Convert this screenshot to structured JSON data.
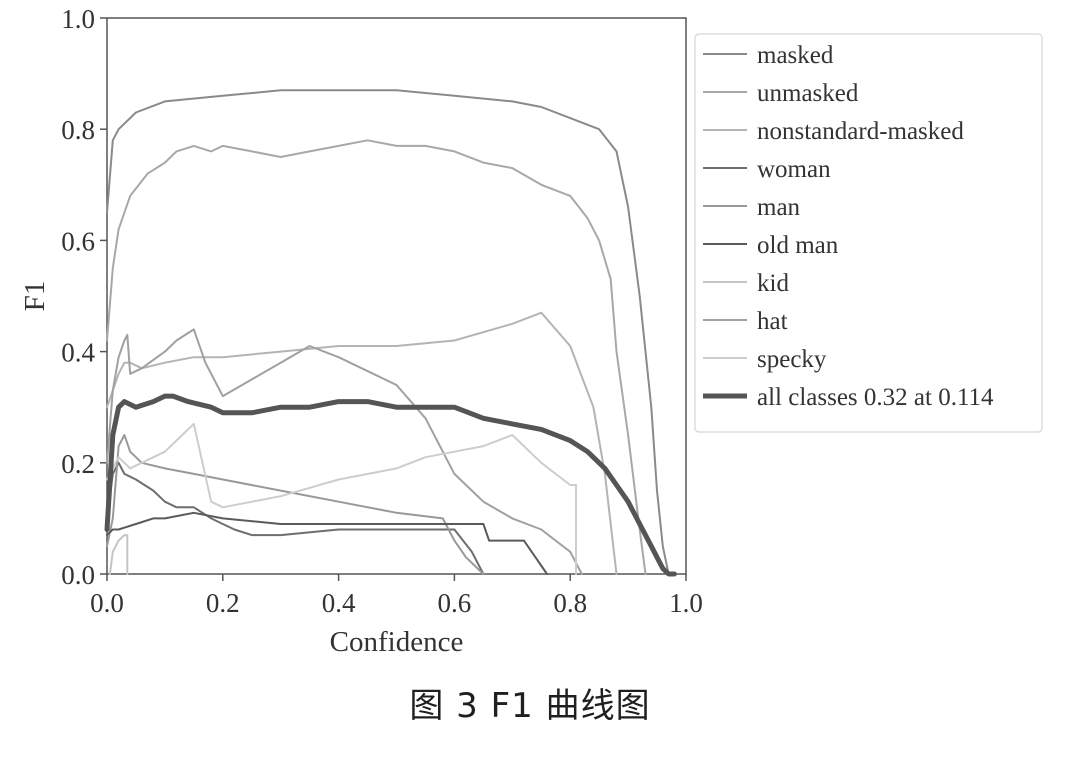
{
  "caption": "图 3   F1 曲线图",
  "chart_data": {
    "type": "line",
    "title": "",
    "xlabel": "Confidence",
    "ylabel": "F1",
    "xlim": [
      0.0,
      1.0
    ],
    "ylim": [
      0.0,
      1.0
    ],
    "xticks": [
      0.0,
      0.2,
      0.4,
      0.6,
      0.8,
      1.0
    ],
    "yticks": [
      0.0,
      0.2,
      0.4,
      0.6,
      0.8,
      1.0
    ],
    "xtick_labels": [
      "0.0",
      "0.2",
      "0.4",
      "0.6",
      "0.8",
      "1.0"
    ],
    "ytick_labels": [
      "0.0",
      "0.2",
      "0.4",
      "0.6",
      "0.8",
      "1.0"
    ],
    "grid": false,
    "legend_position": "outside-right",
    "series": [
      {
        "name": "masked",
        "color": "#8a8a8a",
        "width": 2,
        "x": [
          0.0,
          0.01,
          0.02,
          0.05,
          0.1,
          0.2,
          0.3,
          0.4,
          0.5,
          0.6,
          0.7,
          0.75,
          0.8,
          0.85,
          0.88,
          0.9,
          0.92,
          0.94,
          0.95,
          0.96,
          0.97,
          0.98
        ],
        "y": [
          0.65,
          0.78,
          0.8,
          0.83,
          0.85,
          0.86,
          0.87,
          0.87,
          0.87,
          0.86,
          0.85,
          0.84,
          0.82,
          0.8,
          0.76,
          0.66,
          0.5,
          0.3,
          0.15,
          0.05,
          0.0,
          0.0
        ]
      },
      {
        "name": "unmasked",
        "color": "#a8a8a8",
        "width": 2,
        "x": [
          0.0,
          0.01,
          0.02,
          0.04,
          0.07,
          0.1,
          0.12,
          0.15,
          0.18,
          0.2,
          0.25,
          0.3,
          0.35,
          0.4,
          0.45,
          0.5,
          0.55,
          0.6,
          0.65,
          0.7,
          0.75,
          0.8,
          0.83,
          0.85,
          0.87,
          0.88,
          0.9,
          0.92,
          0.93
        ],
        "y": [
          0.42,
          0.55,
          0.62,
          0.68,
          0.72,
          0.74,
          0.76,
          0.77,
          0.76,
          0.77,
          0.76,
          0.75,
          0.76,
          0.77,
          0.78,
          0.77,
          0.77,
          0.76,
          0.74,
          0.73,
          0.7,
          0.68,
          0.64,
          0.6,
          0.53,
          0.4,
          0.25,
          0.08,
          0.0
        ]
      },
      {
        "name": "nonstandard-masked",
        "color": "#b4b4b4",
        "width": 2,
        "x": [
          0.0,
          0.02,
          0.03,
          0.04,
          0.06,
          0.1,
          0.15,
          0.2,
          0.3,
          0.4,
          0.5,
          0.6,
          0.7,
          0.75,
          0.8,
          0.84,
          0.86,
          0.88
        ],
        "y": [
          0.3,
          0.36,
          0.38,
          0.38,
          0.37,
          0.38,
          0.39,
          0.39,
          0.4,
          0.41,
          0.41,
          0.42,
          0.45,
          0.47,
          0.41,
          0.3,
          0.18,
          0.0
        ]
      },
      {
        "name": "woman",
        "color": "#6e6e6e",
        "width": 2,
        "x": [
          0.0,
          0.01,
          0.02,
          0.03,
          0.05,
          0.08,
          0.1,
          0.12,
          0.15,
          0.18,
          0.2,
          0.22,
          0.25,
          0.3,
          0.4,
          0.5,
          0.55,
          0.6,
          0.63,
          0.65
        ],
        "y": [
          0.1,
          0.18,
          0.2,
          0.18,
          0.17,
          0.15,
          0.13,
          0.12,
          0.12,
          0.1,
          0.09,
          0.08,
          0.07,
          0.07,
          0.08,
          0.08,
          0.08,
          0.08,
          0.04,
          0.0
        ]
      },
      {
        "name": "man",
        "color": "#999999",
        "width": 2,
        "x": [
          0.0,
          0.01,
          0.02,
          0.03,
          0.04,
          0.06,
          0.1,
          0.15,
          0.2,
          0.3,
          0.4,
          0.5,
          0.58,
          0.6,
          0.62,
          0.65
        ],
        "y": [
          0.05,
          0.1,
          0.23,
          0.25,
          0.22,
          0.2,
          0.19,
          0.18,
          0.17,
          0.15,
          0.13,
          0.11,
          0.1,
          0.06,
          0.03,
          0.0
        ]
      },
      {
        "name": "old man",
        "color": "#5a5a5a",
        "width": 2,
        "x": [
          0.0,
          0.01,
          0.02,
          0.05,
          0.08,
          0.1,
          0.15,
          0.2,
          0.3,
          0.4,
          0.5,
          0.6,
          0.65,
          0.66,
          0.7,
          0.72,
          0.74,
          0.76
        ],
        "y": [
          0.07,
          0.08,
          0.08,
          0.09,
          0.1,
          0.1,
          0.11,
          0.1,
          0.09,
          0.09,
          0.09,
          0.09,
          0.09,
          0.06,
          0.06,
          0.06,
          0.03,
          0.0
        ]
      },
      {
        "name": "kid",
        "color": "#c4c4c4",
        "width": 2,
        "x": [
          0.005,
          0.01,
          0.02,
          0.03,
          0.035,
          0.035
        ],
        "y": [
          0.0,
          0.04,
          0.06,
          0.07,
          0.07,
          0.0
        ]
      },
      {
        "name": "hat",
        "color": "#a0a0a0",
        "width": 2,
        "x": [
          0.0,
          0.01,
          0.02,
          0.03,
          0.035,
          0.04,
          0.06,
          0.1,
          0.12,
          0.15,
          0.17,
          0.2,
          0.25,
          0.3,
          0.35,
          0.4,
          0.5,
          0.55,
          0.6,
          0.65,
          0.7,
          0.75,
          0.8,
          0.82
        ],
        "y": [
          0.2,
          0.33,
          0.39,
          0.42,
          0.43,
          0.36,
          0.37,
          0.4,
          0.42,
          0.44,
          0.38,
          0.32,
          0.35,
          0.38,
          0.41,
          0.39,
          0.34,
          0.28,
          0.18,
          0.13,
          0.1,
          0.08,
          0.04,
          0.0
        ]
      },
      {
        "name": "specky",
        "color": "#cdcdcd",
        "width": 2,
        "x": [
          0.0,
          0.02,
          0.04,
          0.06,
          0.1,
          0.15,
          0.18,
          0.2,
          0.3,
          0.4,
          0.5,
          0.55,
          0.6,
          0.65,
          0.7,
          0.75,
          0.8,
          0.81,
          0.81
        ],
        "y": [
          0.17,
          0.21,
          0.19,
          0.2,
          0.22,
          0.27,
          0.13,
          0.12,
          0.14,
          0.17,
          0.19,
          0.21,
          0.22,
          0.23,
          0.25,
          0.2,
          0.16,
          0.16,
          0.0
        ]
      },
      {
        "name": "all classes 0.32 at 0.114",
        "color": "#555555",
        "width": 5,
        "x": [
          0.0,
          0.01,
          0.02,
          0.03,
          0.05,
          0.08,
          0.1,
          0.114,
          0.14,
          0.18,
          0.2,
          0.25,
          0.3,
          0.35,
          0.4,
          0.45,
          0.5,
          0.55,
          0.6,
          0.65,
          0.7,
          0.75,
          0.8,
          0.83,
          0.86,
          0.88,
          0.9,
          0.92,
          0.94,
          0.95,
          0.96,
          0.97,
          0.98
        ],
        "y": [
          0.08,
          0.25,
          0.3,
          0.31,
          0.3,
          0.31,
          0.32,
          0.32,
          0.31,
          0.3,
          0.29,
          0.29,
          0.3,
          0.3,
          0.31,
          0.31,
          0.3,
          0.3,
          0.3,
          0.28,
          0.27,
          0.26,
          0.24,
          0.22,
          0.19,
          0.16,
          0.13,
          0.09,
          0.05,
          0.03,
          0.01,
          0.0,
          0.0
        ]
      }
    ]
  }
}
